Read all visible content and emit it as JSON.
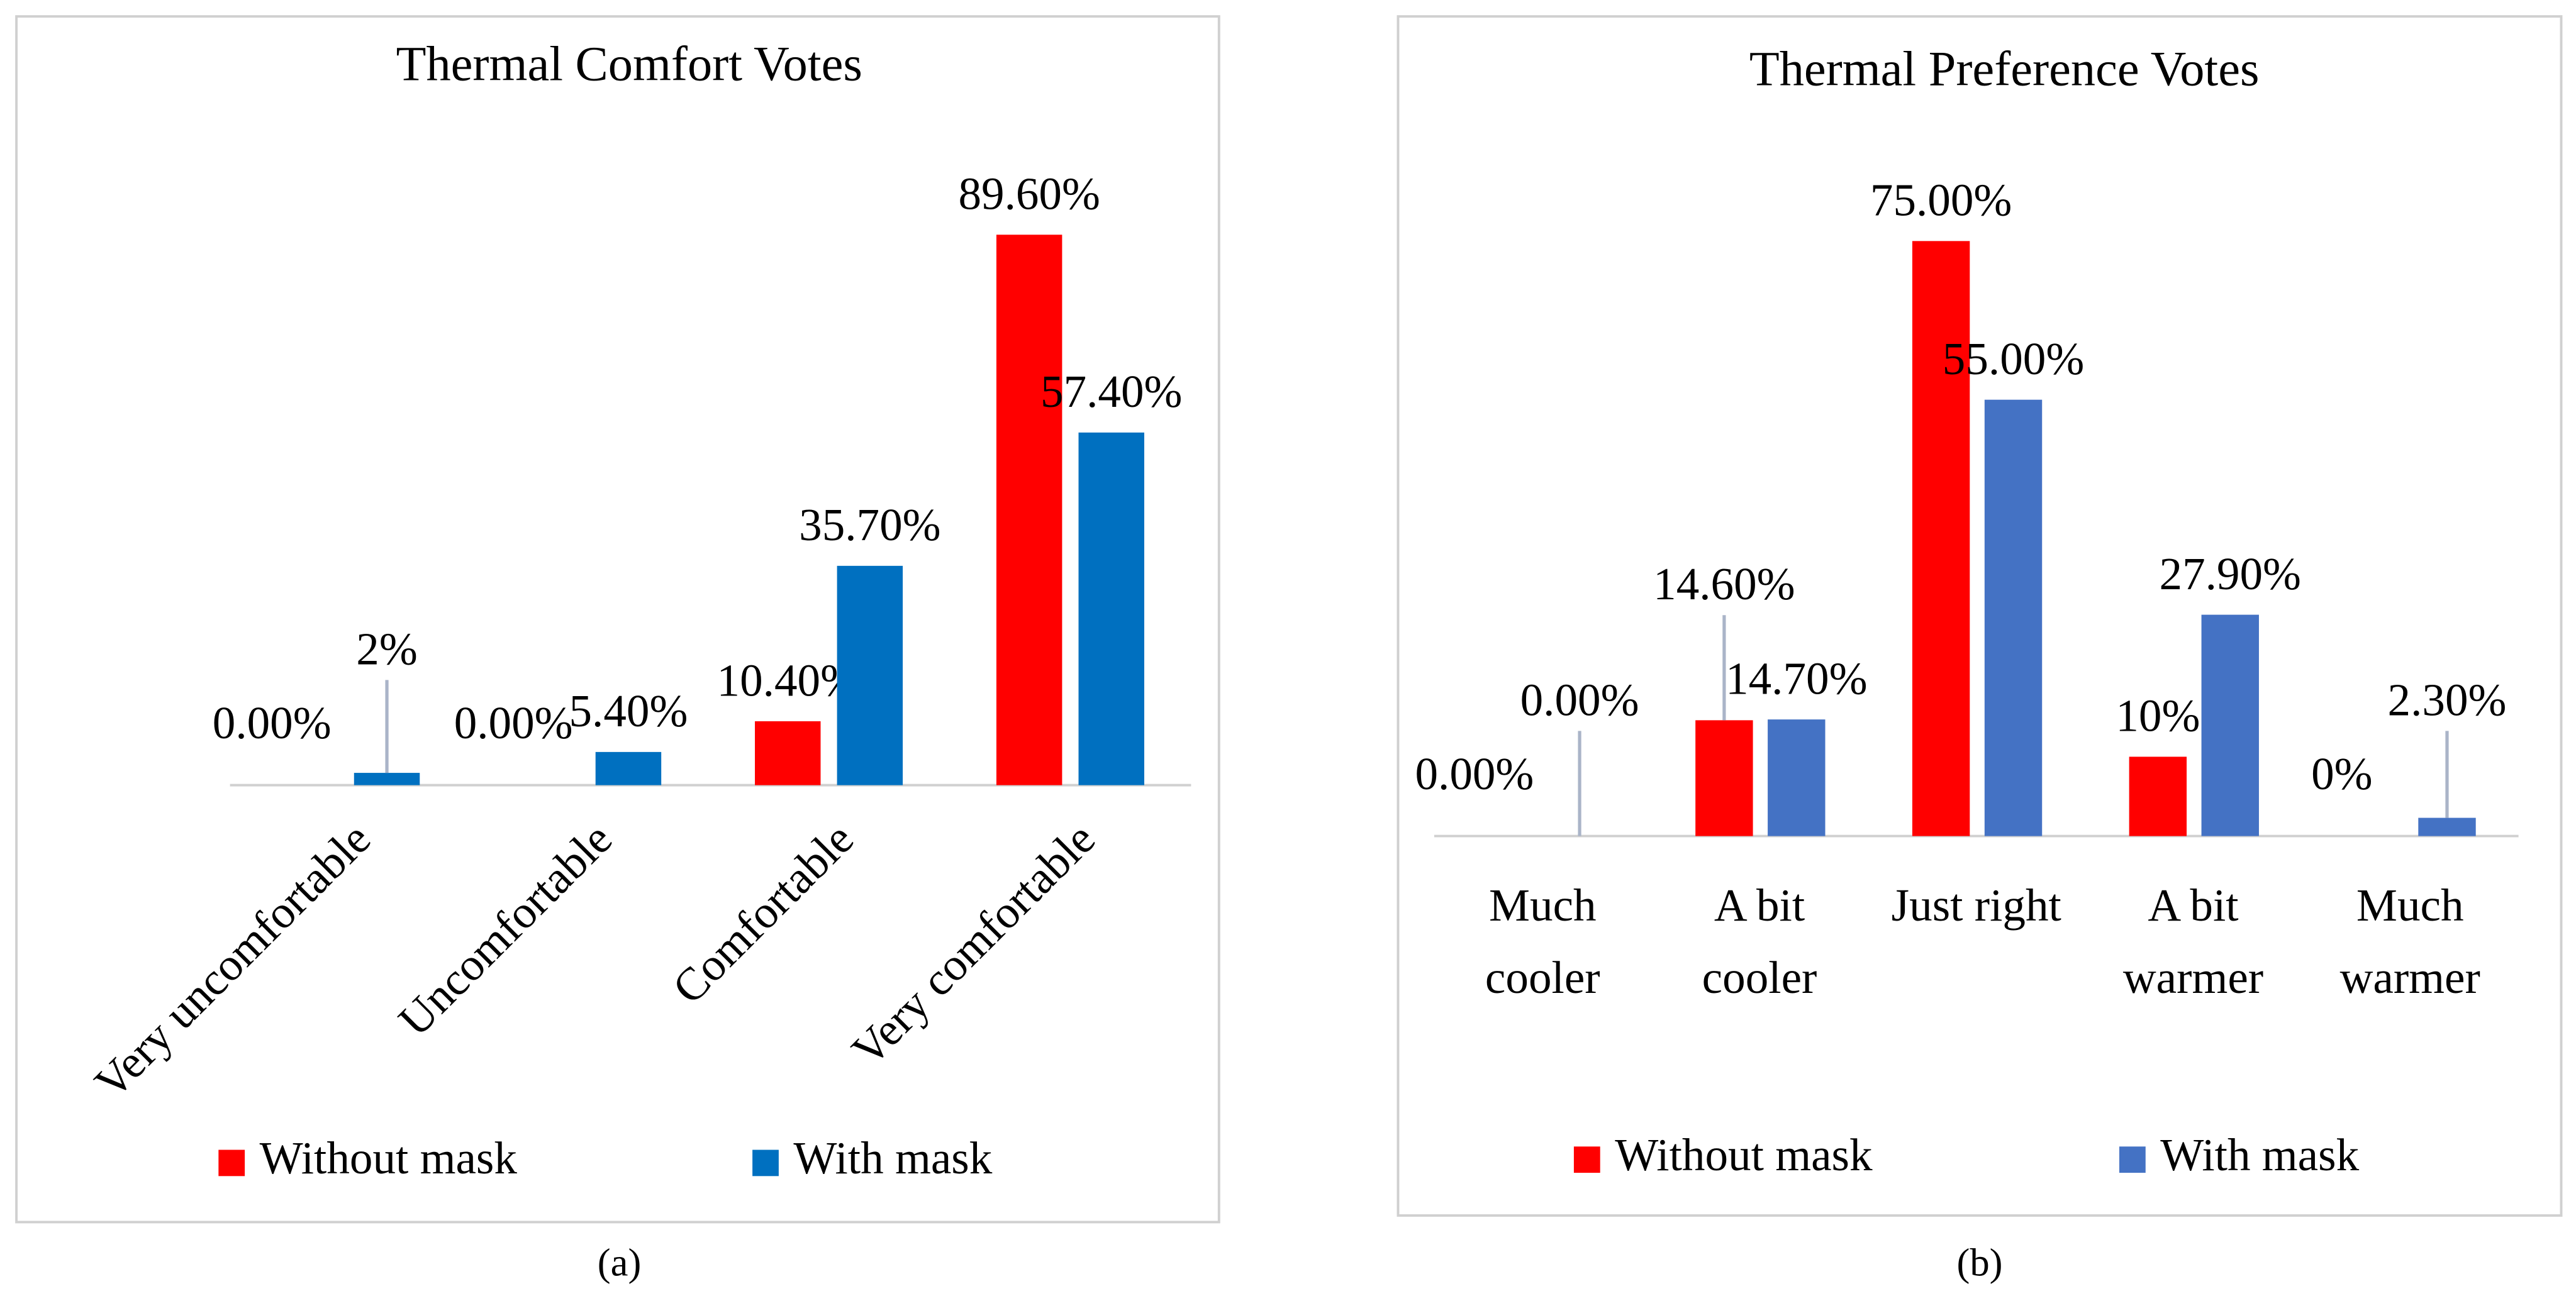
{
  "chart_data": [
    {
      "type": "bar",
      "title": "Thermal Comfort Votes",
      "caption": "(a)",
      "categories": [
        "Very uncomfortable",
        "Uncomfortable",
        "Comfortable",
        "Very comfortable"
      ],
      "series": [
        {
          "name": "Without mask",
          "color": "#ff0000",
          "values": [
            0,
            0,
            10.4,
            89.6
          ],
          "value_labels": [
            "0.00%",
            "0.00%",
            "10.40%",
            "89.60%"
          ]
        },
        {
          "name": "With mask",
          "color": "#0070c0",
          "values": [
            2,
            5.4,
            35.7,
            57.4
          ],
          "value_labels": [
            "2%",
            "5.40%",
            "35.70%",
            "57.40%"
          ]
        }
      ],
      "ylim": [
        0,
        100
      ]
    },
    {
      "type": "bar",
      "title": "Thermal Preference Votes",
      "caption": "(b)",
      "categories": [
        "Much\ncooler",
        "A bit\ncooler",
        "Just right",
        "A bit\nwarmer",
        "Much\nwarmer"
      ],
      "series": [
        {
          "name": "Without mask",
          "color": "#ff0000",
          "values": [
            0,
            14.6,
            75,
            10,
            0
          ],
          "value_labels": [
            "0.00%",
            "14.60%",
            "75.00%",
            "10%",
            "0%"
          ]
        },
        {
          "name": "With mask",
          "color": "#4472c4",
          "values": [
            0,
            14.7,
            55,
            27.9,
            2.3
          ],
          "value_labels": [
            "0.00%",
            "14.70%",
            "55.00%",
            "27.90%",
            "2.30%"
          ]
        }
      ],
      "ylim": [
        0,
        100
      ]
    }
  ]
}
